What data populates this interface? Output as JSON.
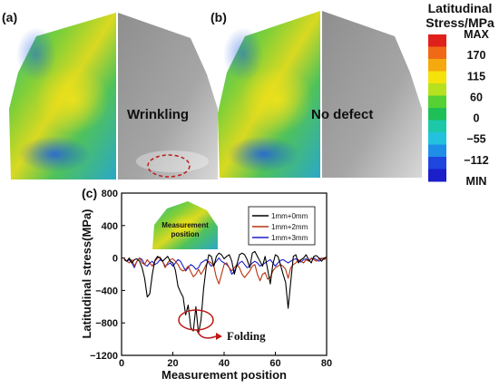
{
  "panels": {
    "a_label": "(a)",
    "b_label": "(b)",
    "c_label": "(c)",
    "a_annotation": "Wrinkling",
    "b_annotation": "No defect"
  },
  "colorbar": {
    "title_line1": "Latitudinal",
    "title_line2": "Stress/MPa",
    "labels": [
      "MAX",
      "170",
      "115",
      "60",
      "0",
      "−55",
      "−112",
      "MIN"
    ],
    "colors": [
      "#e0201b",
      "#f06a16",
      "#f6a80f",
      "#f5e20a",
      "#b6e11f",
      "#55d133",
      "#1fbf57",
      "#1bc8a8",
      "#22c2df",
      "#1f8ee8",
      "#1f45df",
      "#1a1fc9"
    ]
  },
  "inset": {
    "line1": "Measurement",
    "line2": "position"
  },
  "folding_label": "Folding",
  "chart_data": {
    "type": "line",
    "xlabel": "Measurement position",
    "ylabel": "Latitudinal stress(MPa)",
    "xlim": [
      0,
      80
    ],
    "ylim": [
      -1200,
      800
    ],
    "xticks": [
      0,
      20,
      40,
      60,
      80
    ],
    "yticks": [
      800,
      400,
      0,
      -400,
      -800,
      -1200
    ],
    "legend_position": "top-right",
    "series": [
      {
        "name": "1mm+0mm",
        "color": "#000000",
        "x": [
          1,
          2,
          3,
          4,
          5,
          6,
          7,
          8,
          9,
          10,
          11,
          12,
          13,
          14,
          15,
          16,
          17,
          18,
          19,
          20,
          21,
          22,
          23,
          24,
          25,
          26,
          27,
          28,
          29,
          30,
          31,
          32,
          33,
          34,
          35,
          36,
          37,
          38,
          39,
          40,
          41,
          42,
          43,
          44,
          45,
          46,
          47,
          48,
          49,
          50,
          51,
          52,
          53,
          54,
          55,
          56,
          57,
          58,
          59,
          60,
          61,
          62,
          63,
          64,
          65,
          66,
          67,
          68,
          69,
          70,
          71,
          72,
          73,
          74,
          75,
          76,
          77,
          78,
          79,
          80
        ],
        "values": [
          -20,
          -40,
          0,
          -60,
          -20,
          -10,
          -40,
          -120,
          -250,
          -480,
          -440,
          -200,
          -30,
          20,
          0,
          -40,
          -10,
          20,
          -40,
          -60,
          -150,
          -350,
          -420,
          -480,
          -700,
          -580,
          -860,
          -900,
          -600,
          -930,
          -760,
          -380,
          -120,
          40,
          20,
          -100,
          20,
          60,
          40,
          -10,
          20,
          40,
          -40,
          -200,
          -80,
          40,
          60,
          40,
          -20,
          -120,
          60,
          80,
          20,
          -40,
          -100,
          20,
          -140,
          -320,
          -80,
          40,
          20,
          -80,
          -200,
          -300,
          -620,
          -300,
          20,
          40,
          -60,
          -20,
          0,
          40,
          -20,
          -60,
          20,
          30,
          0,
          -40,
          0,
          10
        ]
      },
      {
        "name": "1mm+2mm",
        "color": "#b5340f",
        "x": [
          1,
          2,
          3,
          4,
          5,
          6,
          7,
          8,
          9,
          10,
          11,
          12,
          13,
          14,
          15,
          16,
          17,
          18,
          19,
          20,
          21,
          22,
          23,
          24,
          25,
          26,
          27,
          28,
          29,
          30,
          31,
          32,
          33,
          34,
          35,
          36,
          37,
          38,
          39,
          40,
          41,
          42,
          43,
          44,
          45,
          46,
          47,
          48,
          49,
          50,
          51,
          52,
          53,
          54,
          55,
          56,
          57,
          58,
          59,
          60,
          61,
          62,
          63,
          64,
          65,
          66,
          67,
          68,
          69,
          70,
          71,
          72,
          73,
          74,
          75,
          76,
          77,
          78,
          79,
          80
        ],
        "values": [
          0,
          -40,
          -60,
          -20,
          -100,
          -40,
          0,
          -60,
          -80,
          -20,
          -60,
          -100,
          -40,
          0,
          10,
          -40,
          -120,
          -60,
          -20,
          -10,
          -40,
          -80,
          -140,
          -160,
          -140,
          -100,
          -170,
          -230,
          -200,
          -140,
          -200,
          -150,
          -80,
          -40,
          -60,
          -100,
          -240,
          -320,
          -200,
          -80,
          -60,
          -120,
          -160,
          -120,
          -80,
          -120,
          -200,
          -240,
          -200,
          -160,
          -100,
          -80,
          -200,
          -280,
          -200,
          -180,
          -260,
          -240,
          -160,
          -120,
          -100,
          -80,
          -100,
          -140,
          -250,
          -120,
          -80,
          -60,
          -20,
          -40,
          -60,
          -20,
          -40,
          0,
          -20,
          -40,
          -10,
          0,
          -20,
          0
        ]
      },
      {
        "name": "1mm+3mm",
        "color": "#1e1ec8",
        "x": [
          1,
          2,
          3,
          4,
          5,
          6,
          7,
          8,
          9,
          10,
          11,
          12,
          13,
          14,
          15,
          16,
          17,
          18,
          19,
          20,
          21,
          22,
          23,
          24,
          25,
          26,
          27,
          28,
          29,
          30,
          31,
          32,
          33,
          34,
          35,
          36,
          37,
          38,
          39,
          40,
          41,
          42,
          43,
          44,
          45,
          46,
          47,
          48,
          49,
          50,
          51,
          52,
          53,
          54,
          55,
          56,
          57,
          58,
          59,
          60,
          61,
          62,
          63,
          64,
          65,
          66,
          67,
          68,
          69,
          70,
          71,
          72,
          73,
          74,
          75,
          76,
          77,
          78,
          79,
          80
        ],
        "values": [
          -10,
          -40,
          -20,
          -60,
          -120,
          -40,
          0,
          -20,
          -80,
          -100,
          -60,
          -40,
          -80,
          -60,
          -20,
          -40,
          -100,
          -80,
          -60,
          -100,
          -60,
          -20,
          -40,
          -100,
          -160,
          -120,
          -80,
          -100,
          -140,
          -120,
          -60,
          -40,
          -20,
          -60,
          -100,
          -80,
          -40,
          0,
          -40,
          -60,
          -80,
          -120,
          -200,
          -160,
          -100,
          -60,
          -40,
          -80,
          -120,
          -100,
          -60,
          -40,
          -60,
          -100,
          -80,
          -60,
          -40,
          -20,
          -60,
          -100,
          -60,
          -30,
          -20,
          -40,
          -60,
          -40,
          -20,
          -10,
          -30,
          -50,
          -20,
          -10,
          -30,
          -10,
          0,
          -20,
          -40,
          -10,
          0,
          -10
        ]
      }
    ]
  }
}
